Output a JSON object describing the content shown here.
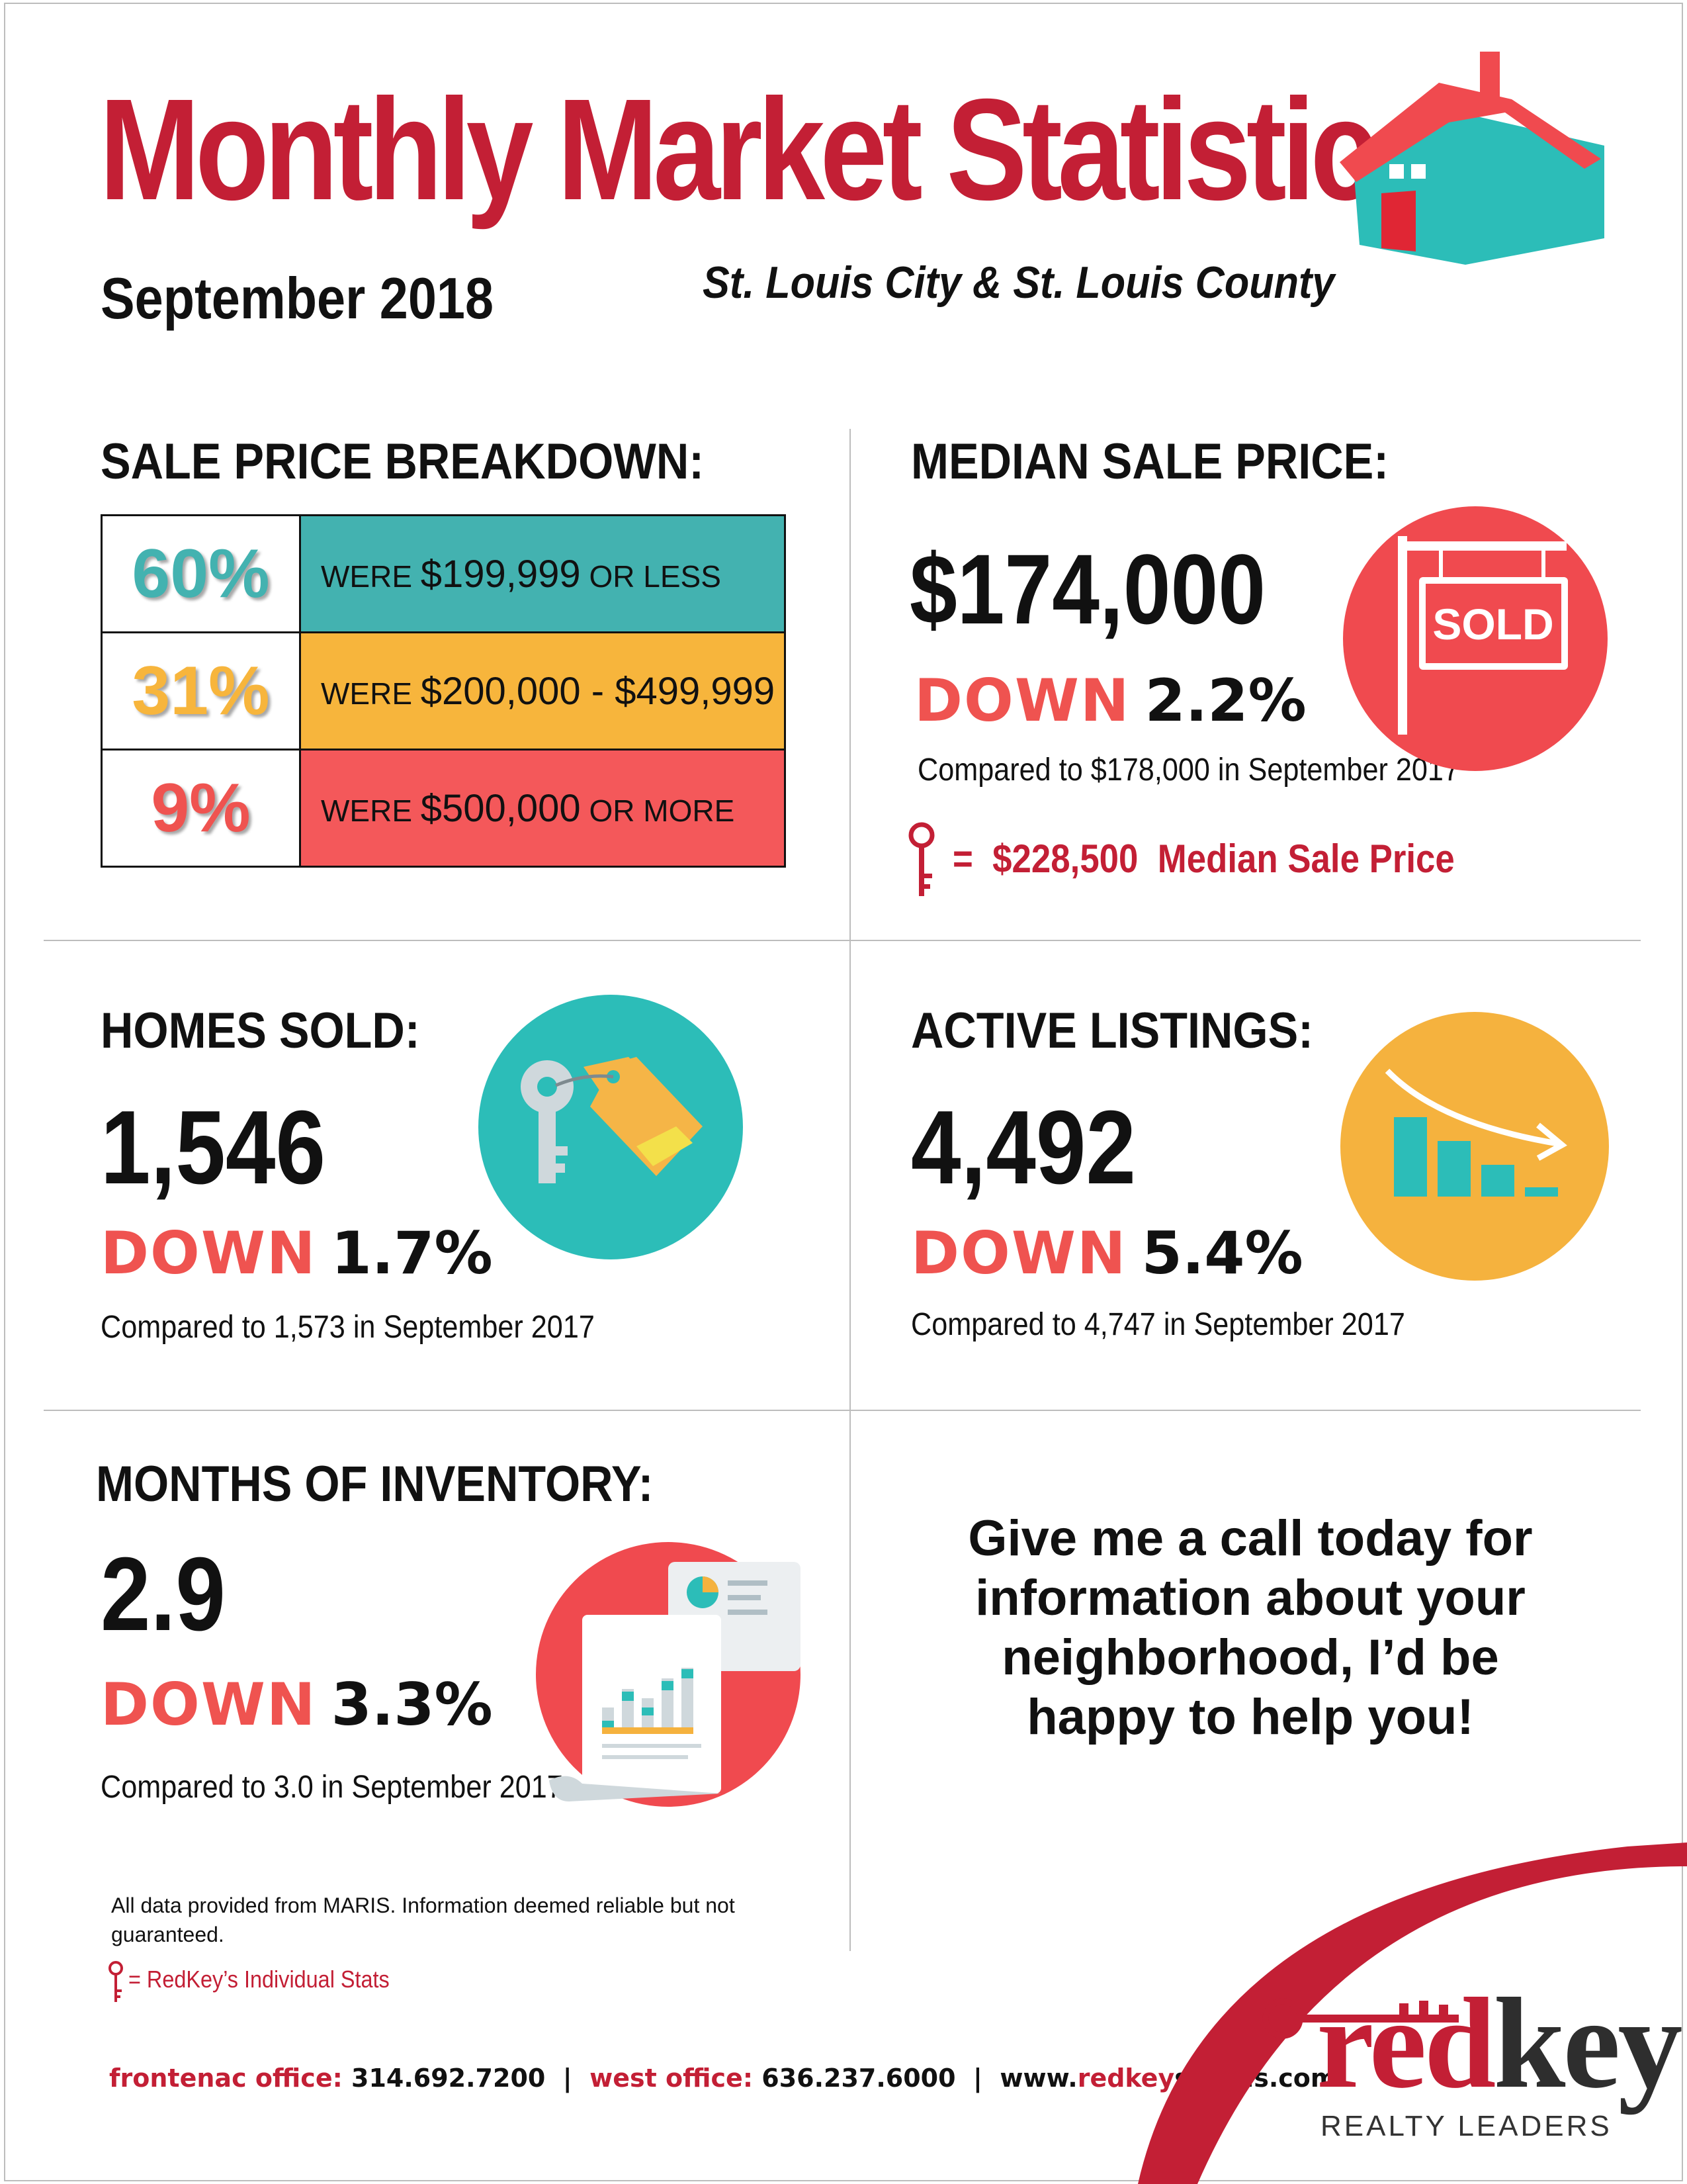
{
  "header": {
    "title": "Monthly Market Statistics",
    "date": "September 2018",
    "region": "St. Louis City & St. Louis County"
  },
  "sale_price_breakdown": {
    "heading": "SALE PRICE BREAKDOWN:",
    "rows": [
      {
        "percent": "60%",
        "prefix": "WERE",
        "amount": "$199,999",
        "suffix": "OR LESS",
        "color": "#43b2b0",
        "text_color": "#43b2b0"
      },
      {
        "percent": "31%",
        "prefix": "WERE",
        "amount": "$200,000 - $499,999",
        "suffix": "",
        "color": "#f7b53c",
        "text_color": "#f7b53c"
      },
      {
        "percent": "9%",
        "prefix": "WERE",
        "amount": "$500,000",
        "suffix": "OR MORE",
        "color": "#f4585a",
        "text_color": "#ef5350"
      }
    ]
  },
  "median_sale_price": {
    "heading": "MEDIAN SALE PRICE:",
    "value": "$174,000",
    "down_label": "DOWN",
    "down_pct": "2.2%",
    "comparison": "Compared to $178,000 in September 2017",
    "key_equals": "=",
    "key_value": "$228,500",
    "key_label": "Median Sale Price",
    "sign_text": "SOLD",
    "icon": "sold-sign-icon"
  },
  "homes_sold": {
    "heading": "HOMES SOLD:",
    "value": "1,546",
    "down_label": "DOWN",
    "down_pct": "1.7%",
    "comparison": "Compared to 1,573 in September 2017",
    "icon": "key-tag-icon"
  },
  "active_listings": {
    "heading": "ACTIVE LISTINGS:",
    "value": "4,492",
    "down_label": "DOWN",
    "down_pct": "5.4%",
    "comparison": "Compared to 4,747 in September 2017",
    "icon": "declining-bars-icon"
  },
  "months_inventory": {
    "heading": "MONTHS OF INVENTORY:",
    "value": "2.9",
    "down_label": "DOWN",
    "down_pct": "3.3%",
    "comparison": "Compared to 3.0 in September 2017",
    "icon": "report-document-icon"
  },
  "cta": {
    "lines": [
      "Give me a call today for",
      "information about your",
      "neighborhood, I’d be",
      "happy to help you!"
    ]
  },
  "footer": {
    "disclaimer": "All data provided from MARIS. Information deemed reliable but not guaranteed.",
    "key_legend": "= RedKey’s Individual Stats",
    "office1_label": "frontenac office:",
    "office1_phone": "314.692.7200",
    "sep": "|",
    "office2_label": "west office:",
    "office2_phone": "636.237.6000",
    "web_prefix": "www.",
    "web_brand": "redkey",
    "web_suffix": "stlouis.com"
  },
  "logo": {
    "word_red": "red",
    "word_dark": "key",
    "subtitle": "REALTY LEADERS"
  },
  "colors": {
    "brand_red": "#c31f35",
    "down_red": "#ef5350",
    "teal": "#2cbdb8",
    "orange": "#f7b53c",
    "coral": "#f04a4f"
  }
}
